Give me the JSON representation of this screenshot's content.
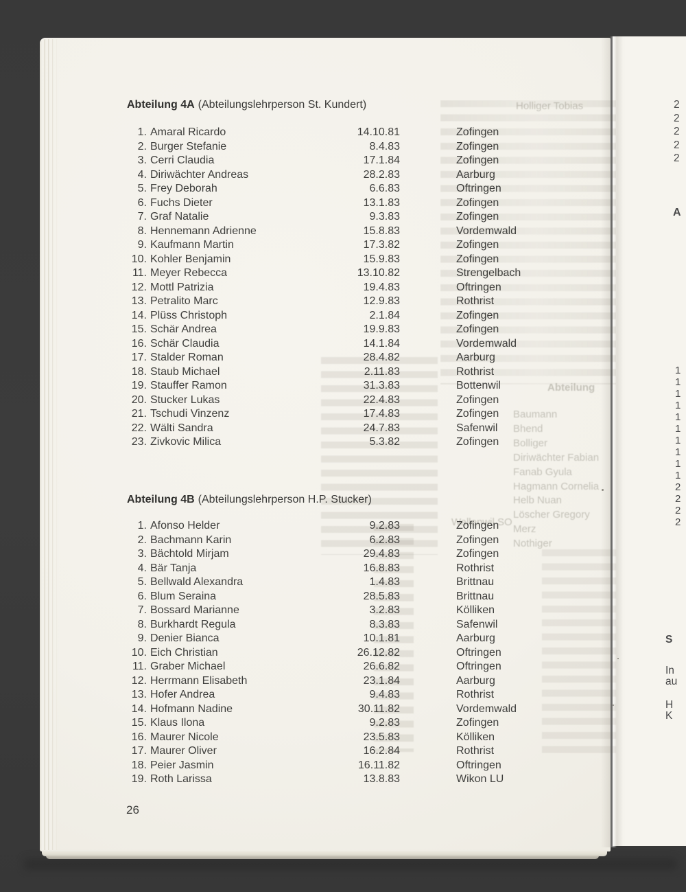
{
  "document": {
    "page_number": "26",
    "sections": [
      {
        "id": "4A",
        "title_bold": "Abteilung 4A",
        "title_rest": "(Abteilungslehrperson St. Kundert)",
        "rows": [
          {
            "num": "1.",
            "name": "Amaral Ricardo",
            "date": "14.10.81",
            "town": "Zofingen"
          },
          {
            "num": "2.",
            "name": "Burger Stefanie",
            "date": "8.4.83",
            "town": "Zofingen"
          },
          {
            "num": "3.",
            "name": "Cerri Claudia",
            "date": "17.1.84",
            "town": "Zofingen"
          },
          {
            "num": "4.",
            "name": "Diriwächter Andreas",
            "date": "28.2.83",
            "town": "Aarburg"
          },
          {
            "num": "5.",
            "name": "Frey Deborah",
            "date": "6.6.83",
            "town": "Oftringen"
          },
          {
            "num": "6.",
            "name": "Fuchs Dieter",
            "date": "13.1.83",
            "town": "Zofingen"
          },
          {
            "num": "7.",
            "name": "Graf Natalie",
            "date": "9.3.83",
            "town": "Zofingen"
          },
          {
            "num": "8.",
            "name": "Hennemann Adrienne",
            "date": "15.8.83",
            "town": "Vordemwald"
          },
          {
            "num": "9.",
            "name": "Kaufmann Martin",
            "date": "17.3.82",
            "town": "Zofingen"
          },
          {
            "num": "10.",
            "name": "Kohler Benjamin",
            "date": "15.9.83",
            "town": "Zofingen"
          },
          {
            "num": "11.",
            "name": "Meyer Rebecca",
            "date": "13.10.82",
            "town": "Strengelbach"
          },
          {
            "num": "12.",
            "name": "Mottl Patrizia",
            "date": "19.4.83",
            "town": "Oftringen"
          },
          {
            "num": "13.",
            "name": "Petralito Marc",
            "date": "12.9.83",
            "town": "Rothrist"
          },
          {
            "num": "14.",
            "name": "Plüss Christoph",
            "date": "2.1.84",
            "town": "Zofingen"
          },
          {
            "num": "15.",
            "name": "Schär Andrea",
            "date": "19.9.83",
            "town": "Zofingen"
          },
          {
            "num": "16.",
            "name": "Schär Claudia",
            "date": "14.1.84",
            "town": "Vordemwald"
          },
          {
            "num": "17.",
            "name": "Stalder Roman",
            "date": "28.4.82",
            "town": "Aarburg"
          },
          {
            "num": "18.",
            "name": "Staub Michael",
            "date": "2.11.83",
            "town": "Rothrist"
          },
          {
            "num": "19.",
            "name": "Stauffer Ramon",
            "date": "31.3.83",
            "town": "Bottenwil"
          },
          {
            "num": "20.",
            "name": "Stucker Lukas",
            "date": "22.4.83",
            "town": "Zofingen"
          },
          {
            "num": "21.",
            "name": "Tschudi Vinzenz",
            "date": "17.4.83",
            "town": "Zofingen"
          },
          {
            "num": "22.",
            "name": "Wälti Sandra",
            "date": "24.7.83",
            "town": "Safenwil"
          },
          {
            "num": "23.",
            "name": "Zivkovic Milica",
            "date": "5.3.82",
            "town": "Zofingen"
          }
        ]
      },
      {
        "id": "4B",
        "title_bold": "Abteilung 4B",
        "title_rest": "(Abteilungslehrperson H.P. Stucker)",
        "rows": [
          {
            "num": "1.",
            "name": "Afonso Helder",
            "date": "9.2.83",
            "town": "Zofingen"
          },
          {
            "num": "2.",
            "name": "Bachmann Karin",
            "date": "6.2.83",
            "town": "Zofingen"
          },
          {
            "num": "3.",
            "name": "Bächtold Mirjam",
            "date": "29.4.83",
            "town": "Zofingen"
          },
          {
            "num": "4.",
            "name": "Bär Tanja",
            "date": "16.8.83",
            "town": "Rothrist"
          },
          {
            "num": "5.",
            "name": "Bellwald Alexandra",
            "date": "1.4.83",
            "town": "Brittnau"
          },
          {
            "num": "6.",
            "name": "Blum Seraina",
            "date": "28.5.83",
            "town": "Brittnau"
          },
          {
            "num": "7.",
            "name": "Bossard Marianne",
            "date": "3.2.83",
            "town": "Kölliken"
          },
          {
            "num": "8.",
            "name": "Burkhardt Regula",
            "date": "8.3.83",
            "town": "Safenwil"
          },
          {
            "num": "9.",
            "name": "Denier Bianca",
            "date": "10.1.81",
            "town": "Aarburg"
          },
          {
            "num": "10.",
            "name": "Eich Christian",
            "date": "26.12.82",
            "town": "Oftringen"
          },
          {
            "num": "11.",
            "name": "Graber Michael",
            "date": "26.6.82",
            "town": "Oftringen"
          },
          {
            "num": "12.",
            "name": "Herrmann Elisabeth",
            "date": "23.1.84",
            "town": "Aarburg"
          },
          {
            "num": "13.",
            "name": "Hofer Andrea",
            "date": "9.4.83",
            "town": "Rothrist"
          },
          {
            "num": "14.",
            "name": "Hofmann Nadine",
            "date": "30.11.82",
            "town": "Vordemwald"
          },
          {
            "num": "15.",
            "name": "Klaus Ilona",
            "date": "9.2.83",
            "town": "Zofingen"
          },
          {
            "num": "16.",
            "name": "Maurer Nicole",
            "date": "23.5.83",
            "town": "Kölliken"
          },
          {
            "num": "17.",
            "name": "Maurer Oliver",
            "date": "16.2.84",
            "town": "Rothrist"
          },
          {
            "num": "18.",
            "name": "Peier Jasmin",
            "date": "16.11.82",
            "town": "Oftringen"
          },
          {
            "num": "19.",
            "name": "Roth Larissa",
            "date": "13.8.83",
            "town": "Wikon LU"
          }
        ]
      }
    ]
  },
  "bleedthrough": {
    "top_fragment": "Holliger Tobias",
    "mid_header": "Abteilung",
    "mid_names": [
      "Baumann",
      "Bhend",
      "Bolliger",
      "Diriwächter Fabian",
      "Fanab Gyula",
      "Hagmann Cornelia",
      "Helb Nuan",
      "Löscher Gregory",
      "Merz",
      "Nothiger"
    ],
    "mid_town": "Wallenwil SO"
  },
  "next_page_edge": {
    "top_digits": [
      "2",
      "2",
      "2",
      "2",
      "2"
    ],
    "header_fragment": "A",
    "mid_digits": [
      "1",
      "1",
      "1",
      "1",
      "1",
      "1",
      "1",
      "1",
      "1",
      "1",
      "2",
      "2",
      "2",
      "2"
    ],
    "bottom_fragments": [
      "S",
      "In",
      "au",
      "H",
      "K"
    ]
  },
  "colors": {
    "background": "#3b3b3b",
    "page": "#f3f1ea",
    "next_page": "#f6f4ee",
    "text": "#3e3e3c",
    "heading": "#30302e",
    "ghost": "#a9a598"
  }
}
